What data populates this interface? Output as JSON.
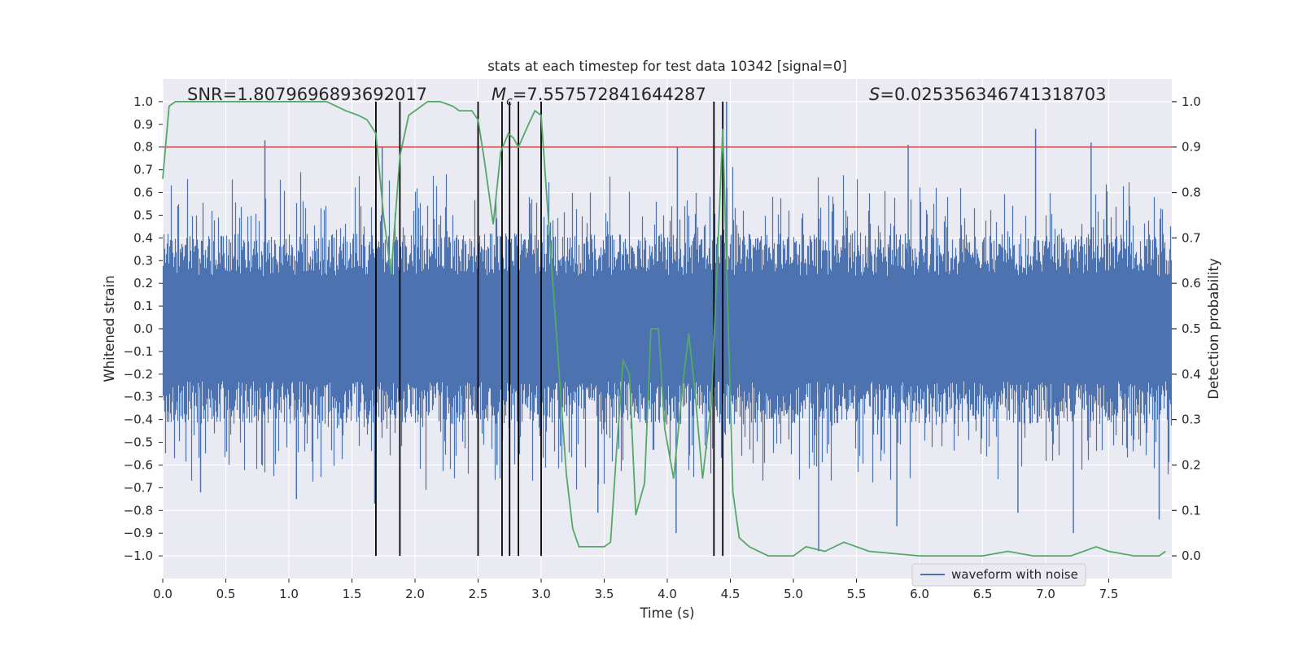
{
  "chart_data": {
    "type": "line",
    "title": "stats at each timestep for test data 10342 [signal=0]",
    "xlabel": "Time (s)",
    "ylabel": "Whitened strain",
    "y2label": "Detection probability",
    "xlim": [
      0.0,
      8.0
    ],
    "ylim": [
      -1.1,
      1.1
    ],
    "y2lim": [
      -0.05,
      1.05
    ],
    "xticks": [
      0.0,
      0.5,
      1.0,
      1.5,
      2.0,
      2.5,
      3.0,
      3.5,
      4.0,
      4.5,
      5.0,
      5.5,
      6.0,
      6.5,
      7.0,
      7.5
    ],
    "xtick_labels": [
      "0.0",
      "0.5",
      "1.0",
      "1.5",
      "2.0",
      "2.5",
      "3.0",
      "3.5",
      "4.0",
      "4.5",
      "5.0",
      "5.5",
      "6.0",
      "6.5",
      "7.0",
      "7.5"
    ],
    "yticks": [
      1.0,
      0.9,
      0.8,
      0.7,
      0.6,
      0.5,
      0.4,
      0.3,
      0.2,
      0.1,
      0.0,
      -0.1,
      -0.2,
      -0.3,
      -0.4,
      -0.5,
      -0.6,
      -0.7,
      -0.8,
      -0.9,
      -1.0
    ],
    "ytick_labels": [
      "1.0",
      "0.9",
      "0.8",
      "0.7",
      "0.6",
      "0.5",
      "0.4",
      "0.3",
      "0.2",
      "0.1",
      "0.0",
      "−0.1",
      "−0.2",
      "−0.3",
      "−0.4",
      "−0.5",
      "−0.6",
      "−0.7",
      "−0.8",
      "−0.9",
      "−1.0"
    ],
    "y2ticks": [
      1.0,
      0.9,
      0.8,
      0.7,
      0.6,
      0.5,
      0.4,
      0.3,
      0.2,
      0.1,
      0.0
    ],
    "y2tick_labels": [
      "1.0",
      "0.9",
      "0.8",
      "0.7",
      "0.6",
      "0.5",
      "0.4",
      "0.3",
      "0.2",
      "0.1",
      "0.0"
    ],
    "grid": true,
    "threshold": 0.9,
    "trigger_times": [
      1.69,
      1.88,
      2.5,
      2.69,
      2.75,
      2.82,
      3.0,
      4.37,
      4.44
    ],
    "annotations": {
      "snr": "SNR=1.8079696893692017",
      "mc_symbol": "M",
      "mc_sub": "c",
      "mc_value": "=7.557572841644287",
      "s_symbol": "S",
      "s_value": "=0.025356346741318703"
    },
    "series": [
      {
        "name": "waveform with noise",
        "axis": "left",
        "color": "#4c72b0",
        "description": "whitened noise strain, bulk within about ±0.4, peaks up to about ±0.9",
        "bulk_envelope": [
          -0.42,
          0.42
        ],
        "peaks": [
          {
            "x": 0.81,
            "y": 0.83
          },
          {
            "x": 1.74,
            "y": 0.8
          },
          {
            "x": 4.47,
            "y": 1.0
          },
          {
            "x": 6.92,
            "y": 0.88
          },
          {
            "x": 7.36,
            "y": 0.82
          },
          {
            "x": 5.91,
            "y": 0.81
          },
          {
            "x": 4.08,
            "y": 0.8
          },
          {
            "x": 1.68,
            "y": -0.77
          },
          {
            "x": 3.45,
            "y": -0.81
          },
          {
            "x": 4.07,
            "y": -0.9
          },
          {
            "x": 5.2,
            "y": -0.98
          },
          {
            "x": 5.82,
            "y": -0.87
          },
          {
            "x": 7.22,
            "y": -0.9
          },
          {
            "x": 7.9,
            "y": -0.84
          },
          {
            "x": 0.3,
            "y": -0.72
          },
          {
            "x": 1.06,
            "y": -0.75
          },
          {
            "x": 2.65,
            "y": -0.6
          },
          {
            "x": 6.78,
            "y": -0.81
          }
        ]
      },
      {
        "name": "detection probability",
        "axis": "right",
        "color": "#55a868",
        "x": [
          0.0,
          0.05,
          0.1,
          0.2,
          0.5,
          0.8,
          1.0,
          1.3,
          1.45,
          1.55,
          1.62,
          1.69,
          1.75,
          1.81,
          1.88,
          1.95,
          2.0,
          2.1,
          2.2,
          2.3,
          2.35,
          2.45,
          2.5,
          2.55,
          2.62,
          2.68,
          2.74,
          2.78,
          2.82,
          2.9,
          2.95,
          3.0,
          3.08,
          3.2,
          3.25,
          3.3,
          3.5,
          3.55,
          3.6,
          3.65,
          3.7,
          3.75,
          3.82,
          3.87,
          3.93,
          3.98,
          4.05,
          4.12,
          4.17,
          4.22,
          4.28,
          4.35,
          4.44,
          4.52,
          4.57,
          4.65,
          4.8,
          5.0,
          5.1,
          5.25,
          5.4,
          5.6,
          6.0,
          6.5,
          6.7,
          6.9,
          7.2,
          7.4,
          7.5,
          7.7,
          7.9,
          7.95
        ],
        "values": [
          0.83,
          0.99,
          1.0,
          1.0,
          1.0,
          1.0,
          1.0,
          1.0,
          0.98,
          0.97,
          0.96,
          0.93,
          0.75,
          0.62,
          0.88,
          0.97,
          0.98,
          1.0,
          1.0,
          0.99,
          0.98,
          0.98,
          0.96,
          0.87,
          0.73,
          0.89,
          0.93,
          0.92,
          0.9,
          0.95,
          0.98,
          0.97,
          0.65,
          0.18,
          0.06,
          0.02,
          0.02,
          0.03,
          0.24,
          0.43,
          0.4,
          0.09,
          0.16,
          0.5,
          0.5,
          0.28,
          0.17,
          0.37,
          0.49,
          0.36,
          0.17,
          0.34,
          0.94,
          0.14,
          0.04,
          0.02,
          0.0,
          0.0,
          0.02,
          0.01,
          0.03,
          0.01,
          0.0,
          0.0,
          0.01,
          0.0,
          0.0,
          0.02,
          0.01,
          0.0,
          0.0,
          0.01
        ]
      }
    ],
    "legend": {
      "location": "lower-right",
      "entries": [
        "waveform with noise"
      ]
    }
  }
}
